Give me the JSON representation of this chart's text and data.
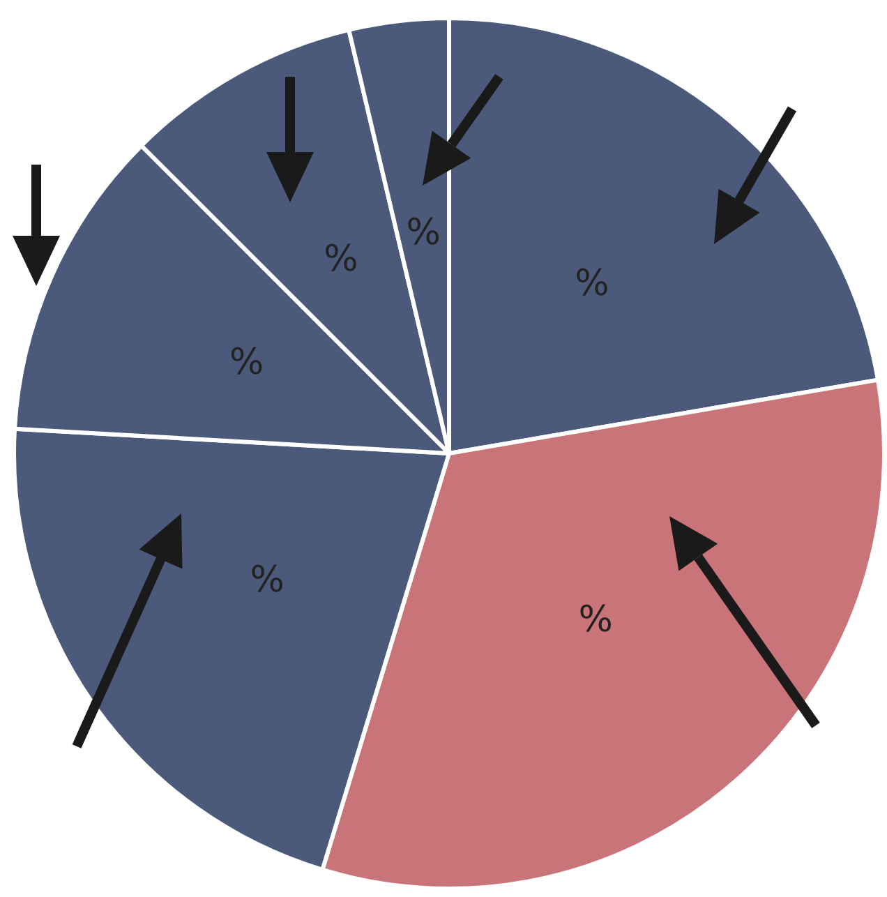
{
  "chart_data": {
    "type": "pie",
    "categories": [
      null,
      null,
      null,
      null,
      null,
      null
    ],
    "values": [
      22.3,
      32.4,
      21.2,
      11.6,
      8.8,
      3.7
    ],
    "colors": [
      "#4b5a7b",
      "#c97478",
      "#4b5a7b",
      "#4b5a7b",
      "#4b5a7b",
      "#4b5a7b"
    ],
    "value_labels": [
      "%",
      "%",
      "%",
      "%",
      "%",
      "%"
    ]
  }
}
